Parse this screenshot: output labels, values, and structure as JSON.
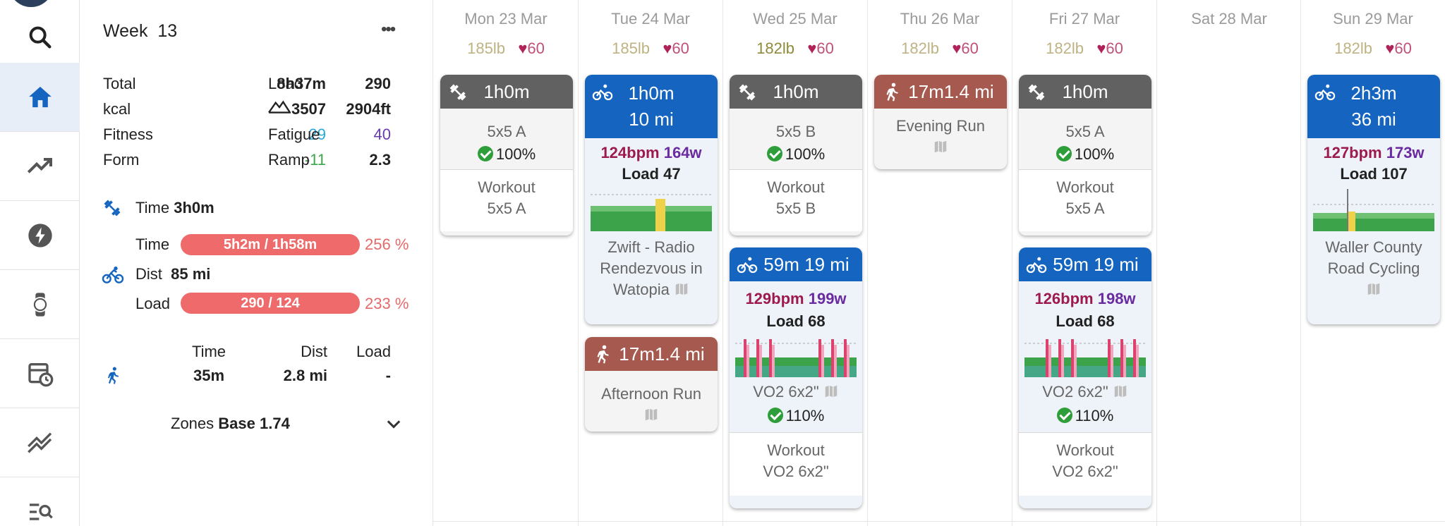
{
  "nav": {
    "items": [
      "search",
      "home",
      "fitness",
      "power",
      "watch",
      "plan",
      "compare",
      "filter"
    ]
  },
  "week": {
    "label": "Week",
    "number": "13",
    "more": "•••"
  },
  "totals": {
    "total_label": "Total",
    "total_value": "8h37m",
    "load_label": "Load",
    "load_value": "290",
    "kcal_label": "kcal",
    "kcal_value": "3507",
    "elev_value": "2904ft",
    "fitness_label": "Fitness",
    "fitness_value": "29",
    "fatigue_label": "Fatigue",
    "fatigue_value": "40",
    "form_label": "Form",
    "form_value": "-11",
    "ramp_label": "Ramp",
    "ramp_value": "2.3"
  },
  "strength": {
    "time_label": "Time",
    "time_value": "3h0m"
  },
  "ride": {
    "time_label": "Time",
    "time_bar": "5h2m / 1h58m",
    "time_pct": "256 %",
    "time_fill": 1.0,
    "dist_label": "Dist",
    "dist_value": "85 mi",
    "load_label": "Load",
    "load_bar": "290 / 124",
    "load_pct": "233 %",
    "load_fill": 1.0
  },
  "run": {
    "time_label": "Time",
    "dist_label": "Dist",
    "load_label": "Load",
    "time_value": "35m",
    "dist_value": "2.8 mi",
    "load_value": "-"
  },
  "zones": {
    "label": "Zones",
    "value": "Base 1.74"
  },
  "colors": {
    "accent": "#1565c0",
    "fitness": "#2aa8d6",
    "fatigue": "#6a3ab2",
    "form": "#3aa84a",
    "bar": "#ef6b6b"
  },
  "days": [
    {
      "head": "Mon 23 Mar",
      "weight": "185lb",
      "hr": "60"
    },
    {
      "head": "Tue 24 Mar",
      "weight": "185lb",
      "hr": "60"
    },
    {
      "head": "Wed 25 Mar",
      "weight": "182lb",
      "hr": "60"
    },
    {
      "head": "Thu 26 Mar",
      "weight": "182lb",
      "hr": "60"
    },
    {
      "head": "Fri 27 Mar",
      "weight": "182lb",
      "hr": "60"
    },
    {
      "head": "Sat 28 Mar",
      "weight": "",
      "hr": ""
    },
    {
      "head": "Sun 29 Mar",
      "weight": "182lb",
      "hr": "60"
    }
  ],
  "cards": {
    "mon_strength": {
      "time": "1h0m",
      "name": "5x5 A",
      "compliance": "100%",
      "plan1": "Workout",
      "plan2": "5x5 A"
    },
    "tue_ride": {
      "time": "1h0m",
      "dist": "10 mi",
      "bpm": "124bpm",
      "watts": "164w",
      "load": "Load 47",
      "name1": "Zwift - Radio",
      "name2": "Rendezvous in",
      "name3": "Watopia"
    },
    "tue_run": {
      "time": "17m",
      "dist": "1.4 mi",
      "name": "Afternoon Run"
    },
    "wed_strength": {
      "time": "1h0m",
      "name": "5x5 B",
      "compliance": "100%",
      "plan1": "Workout",
      "plan2": "5x5 B"
    },
    "wed_ride": {
      "time": "59m",
      "dist": "19 mi",
      "bpm": "129bpm",
      "watts": "199w",
      "load": "Load 68",
      "name": "VO2 6x2\"",
      "compliance": "110%",
      "plan1": "Workout",
      "plan2": "VO2 6x2\""
    },
    "thu_run": {
      "time": "17m",
      "dist": "1.4 mi",
      "name": "Evening Run"
    },
    "fri_strength": {
      "time": "1h0m",
      "name": "5x5 A",
      "compliance": "100%",
      "plan1": "Workout",
      "plan2": "5x5 A"
    },
    "fri_ride": {
      "time": "59m",
      "dist": "19 mi",
      "bpm": "126bpm",
      "watts": "198w",
      "load": "Load 68",
      "name": "VO2 6x2\"",
      "compliance": "110%",
      "plan1": "Workout",
      "plan2": "VO2 6x2\""
    },
    "sun_ride": {
      "time": "2h3m",
      "dist": "36 mi",
      "bpm": "127bpm",
      "watts": "173w",
      "load": "Load 107",
      "name1": "Waller County",
      "name2": "Road Cycling"
    }
  }
}
